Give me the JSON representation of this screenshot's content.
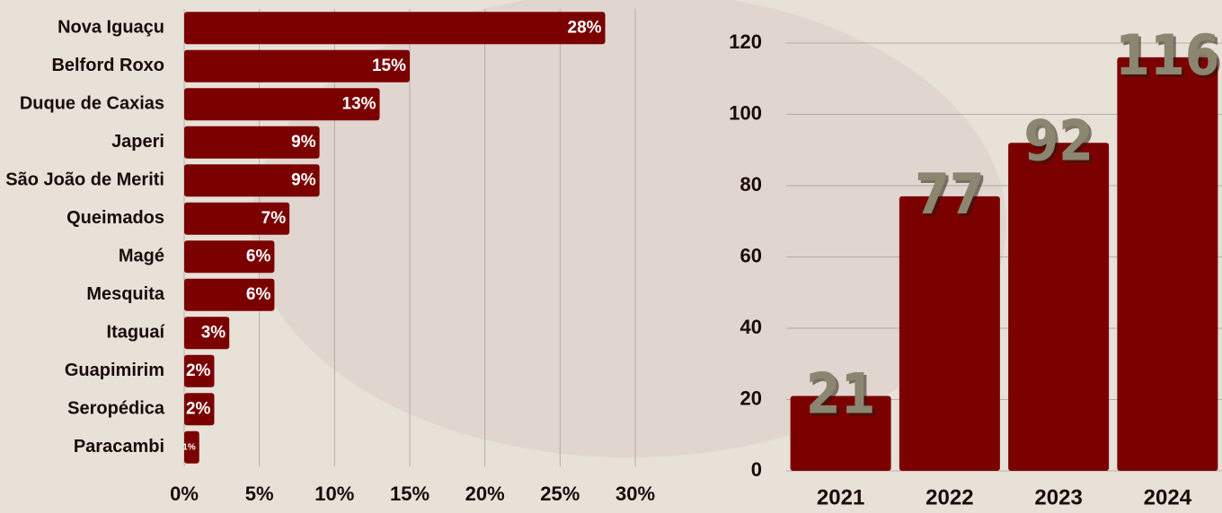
{
  "chart_data": [
    {
      "type": "hbar",
      "categories": [
        "Nova Iguaçu",
        "Belford Roxo",
        "Duque de Caxias",
        "Japeri",
        "São João de Meriti",
        "Queimados",
        "Magé",
        "Mesquita",
        "Itaguaí",
        "Guapimirim",
        "Seropédica",
        "Paracambi"
      ],
      "values": [
        28,
        15,
        13,
        9,
        9,
        7,
        6,
        6,
        3,
        2,
        2,
        1
      ],
      "value_labels": [
        "28%",
        "15%",
        "13%",
        "9%",
        "9%",
        "7%",
        "6%",
        "6%",
        "3%",
        "2%",
        "2%",
        "1%"
      ],
      "color": "#7b0000",
      "xlim": [
        0,
        30
      ],
      "xticks": [
        {
          "value": 0,
          "label": "0%"
        },
        {
          "value": 5,
          "label": "5%"
        },
        {
          "value": 10,
          "label": "10%"
        },
        {
          "value": 15,
          "label": "15%"
        },
        {
          "value": 20,
          "label": "20%"
        },
        {
          "value": 25,
          "label": "25%"
        },
        {
          "value": 30,
          "label": "30%"
        }
      ],
      "grid": true
    },
    {
      "type": "bar",
      "categories": [
        "2021",
        "2022",
        "2023",
        "2024"
      ],
      "values": [
        21,
        77,
        92,
        116
      ],
      "color": "#7b0000",
      "label_color": "#8a8670",
      "ylim": [
        0,
        120
      ],
      "yticks": [
        0,
        20,
        40,
        60,
        80,
        100,
        120
      ],
      "grid": true
    }
  ]
}
